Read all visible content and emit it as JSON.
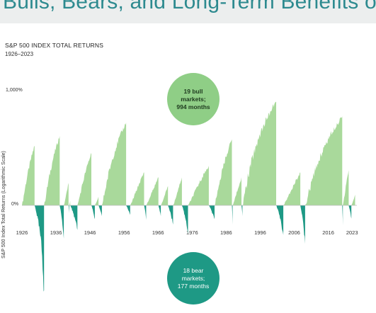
{
  "page": {
    "title": "Bulls, Bears, and Long-Term Benefits of Stock Investing"
  },
  "colors": {
    "bull": "#a9d99b",
    "bull_bubble": "#8fce86",
    "bear": "#1e9985",
    "title": "#2d8a8f"
  },
  "chart_data": {
    "type": "area",
    "title": "S&P 500 INDEX TOTAL RETURNS",
    "subtitle": "1926–2023",
    "xlabel": "",
    "ylabel": "S&P 500 Index Total Returns (Logarithmic Scale)",
    "y_scale": "log",
    "y_ticks": [
      "1,000%",
      "0%"
    ],
    "x_ticks": [
      "1926",
      "1936",
      "1946",
      "1956",
      "1966",
      "1976",
      "1986",
      "1996",
      "2006",
      "2016",
      "2023"
    ],
    "grid": false,
    "annotations": [
      {
        "series": "bull",
        "lines": [
          "19 bull",
          "markets;",
          "994 months"
        ]
      },
      {
        "series": "bear",
        "lines": [
          "18 bear",
          "markets;",
          "177 months"
        ]
      }
    ],
    "bull_markets": [
      {
        "start": 1926.0,
        "end": 1929.7,
        "peak_return_pct": 250
      },
      {
        "start": 1932.5,
        "end": 1937.1,
        "peak_return_pct": 330
      },
      {
        "start": 1938.3,
        "end": 1939.7,
        "peak_return_pct": 60
      },
      {
        "start": 1939.9,
        "end": 1940.2,
        "peak_return_pct": 10
      },
      {
        "start": 1942.3,
        "end": 1946.4,
        "peak_return_pct": 200
      },
      {
        "start": 1947.4,
        "end": 1948.5,
        "peak_return_pct": 20
      },
      {
        "start": 1949.5,
        "end": 1956.6,
        "peak_return_pct": 470
      },
      {
        "start": 1957.8,
        "end": 1961.9,
        "peak_return_pct": 100
      },
      {
        "start": 1962.5,
        "end": 1966.1,
        "peak_return_pct": 80
      },
      {
        "start": 1966.8,
        "end": 1968.9,
        "peak_return_pct": 50
      },
      {
        "start": 1970.4,
        "end": 1973.0,
        "peak_return_pct": 80
      },
      {
        "start": 1974.8,
        "end": 1980.9,
        "peak_return_pct": 130
      },
      {
        "start": 1982.6,
        "end": 1987.7,
        "peak_return_pct": 300
      },
      {
        "start": 1987.9,
        "end": 1990.5,
        "peak_return_pct": 80
      },
      {
        "start": 1990.8,
        "end": 2000.7,
        "peak_return_pct": 780
      },
      {
        "start": 2002.8,
        "end": 2007.8,
        "peak_return_pct": 100
      },
      {
        "start": 2009.2,
        "end": 2020.1,
        "peak_return_pct": 550
      },
      {
        "start": 2020.3,
        "end": 2022.0,
        "peak_return_pct": 110
      },
      {
        "start": 2022.8,
        "end": 2023.9,
        "peak_return_pct": 25
      }
    ],
    "bear_markets": [
      {
        "start": 1929.7,
        "end": 1932.5,
        "trough_return_pct": -83
      },
      {
        "start": 1937.1,
        "end": 1938.3,
        "trough_return_pct": -50
      },
      {
        "start": 1939.7,
        "end": 1939.9,
        "trough_return_pct": -15
      },
      {
        "start": 1940.2,
        "end": 1942.3,
        "trough_return_pct": -40
      },
      {
        "start": 1946.4,
        "end": 1947.4,
        "trough_return_pct": -25
      },
      {
        "start": 1948.5,
        "end": 1949.5,
        "trough_return_pct": -20
      },
      {
        "start": 1956.6,
        "end": 1957.8,
        "trough_return_pct": -18
      },
      {
        "start": 1961.9,
        "end": 1962.5,
        "trough_return_pct": -26
      },
      {
        "start": 1966.1,
        "end": 1966.8,
        "trough_return_pct": -20
      },
      {
        "start": 1968.9,
        "end": 1970.4,
        "trough_return_pct": -33
      },
      {
        "start": 1973.0,
        "end": 1974.8,
        "trough_return_pct": -45
      },
      {
        "start": 1980.9,
        "end": 1982.6,
        "trough_return_pct": -25
      },
      {
        "start": 1987.7,
        "end": 1987.9,
        "trough_return_pct": -33
      },
      {
        "start": 1990.5,
        "end": 1990.8,
        "trough_return_pct": -20
      },
      {
        "start": 2000.7,
        "end": 2002.8,
        "trough_return_pct": -46
      },
      {
        "start": 2007.8,
        "end": 2009.2,
        "trough_return_pct": -55
      },
      {
        "start": 2020.1,
        "end": 2020.3,
        "trough_return_pct": -34
      },
      {
        "start": 2022.0,
        "end": 2022.8,
        "trough_return_pct": -24
      }
    ]
  }
}
